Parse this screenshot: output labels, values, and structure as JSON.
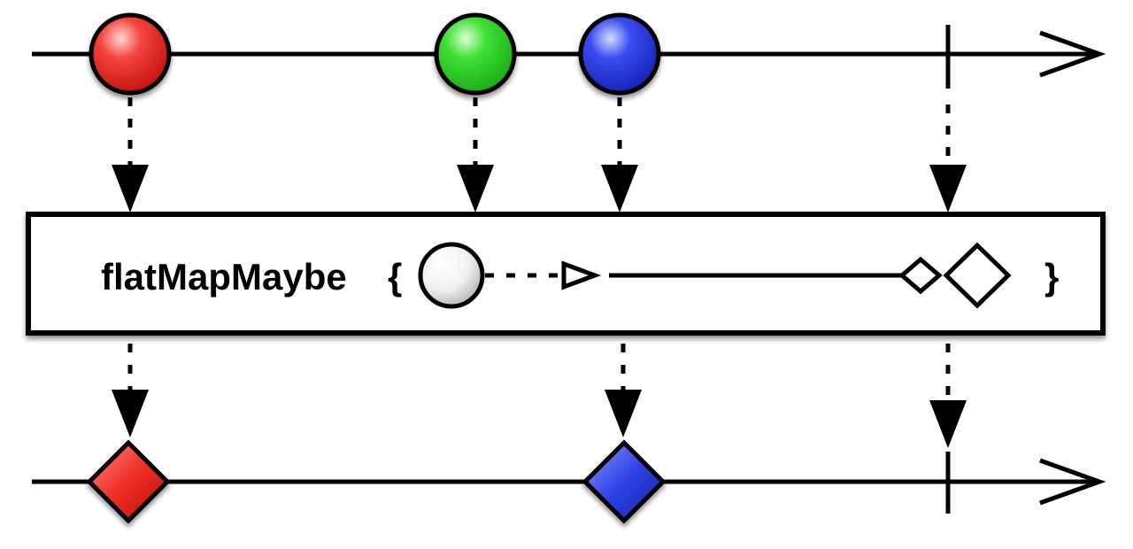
{
  "operator": {
    "name": "flatMapMaybe",
    "open_brace": "{",
    "close_brace": "}"
  },
  "input_stream": {
    "items": [
      {
        "shape": "circle",
        "color": "#e8231f"
      },
      {
        "shape": "circle",
        "color": "#2fcf28"
      },
      {
        "shape": "circle",
        "color": "#2436d6"
      }
    ],
    "terminates": "complete"
  },
  "output_stream": {
    "items": [
      {
        "shape": "diamond",
        "color": "#e8231f"
      },
      {
        "shape": "diamond",
        "color": "#2436d6"
      }
    ],
    "terminates": "complete"
  },
  "icons": {
    "input_marble": "circle-marble-icon",
    "output_marble": "diamond-marble-icon",
    "completion": "completion-bar-icon",
    "arrow": "timeline-arrow-icon"
  }
}
